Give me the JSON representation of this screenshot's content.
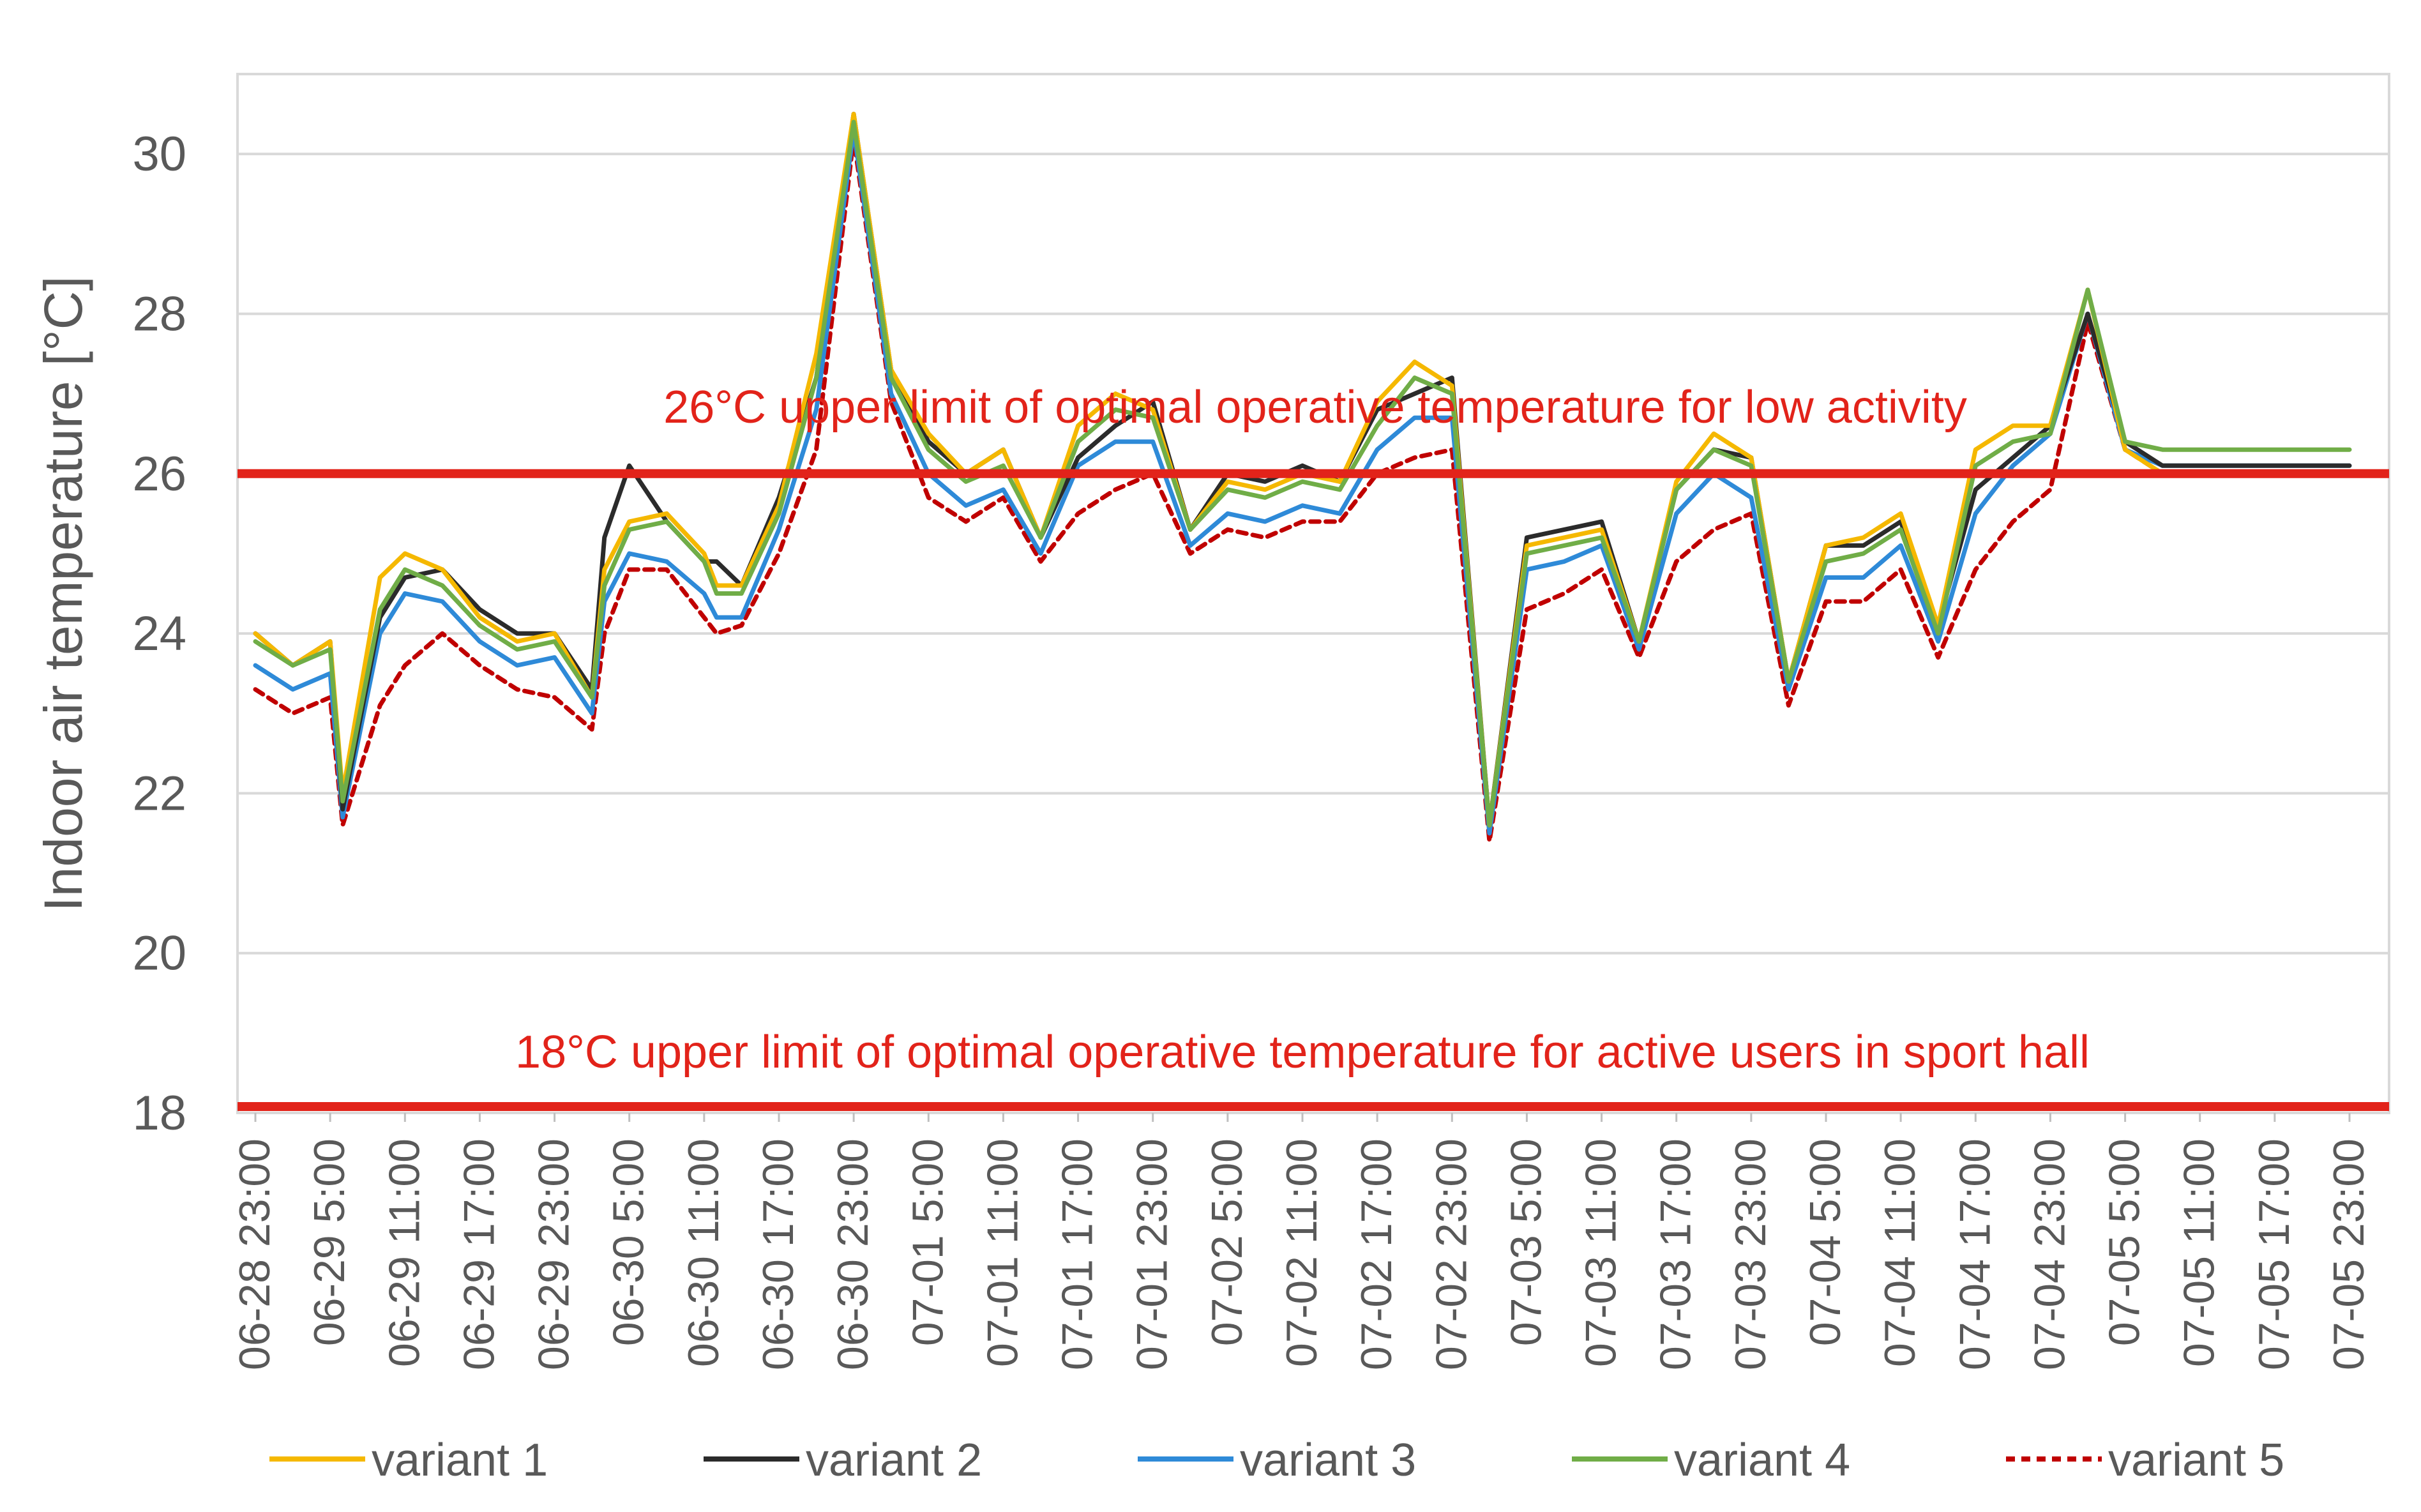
{
  "chart_data": {
    "type": "line",
    "ylabel": "Indoor air temperature [°C]",
    "xlabel": "",
    "ylim": [
      18,
      31
    ],
    "yticks": [
      18,
      20,
      22,
      24,
      26,
      28,
      30
    ],
    "grid": true,
    "x_tick_labels": [
      "06-28 23:00",
      "06-29 5:00",
      "06-29 11:00",
      "06-29 17:00",
      "06-29 23:00",
      "06-30 5:00",
      "06-30 11:00",
      "06-30 17:00",
      "06-30 23:00",
      "07-01 5:00",
      "07-01 11:00",
      "07-01 17:00",
      "07-01 23:00",
      "07-02 5:00",
      "07-02 11:00",
      "07-02 17:00",
      "07-02 23:00",
      "07-03 5:00",
      "07-03 11:00",
      "07-03 17:00",
      "07-03 23:00",
      "07-04 5:00",
      "07-04 11:00",
      "07-04 17:00",
      "07-04 23:00",
      "07-05 5:00",
      "07-05 11:00",
      "07-05 17:00",
      "07-05 23:00"
    ],
    "x_hours": [
      0,
      3,
      6,
      7,
      10,
      12,
      15,
      18,
      21,
      24,
      27,
      28,
      30,
      33,
      36,
      37,
      39,
      42,
      45,
      48,
      51,
      54,
      57,
      60,
      63,
      66,
      69,
      72,
      75,
      78,
      81,
      84,
      87,
      90,
      93,
      96,
      99,
      102,
      105,
      108,
      111,
      114,
      117,
      120,
      123,
      126,
      129,
      132,
      135,
      138,
      141,
      144,
      147,
      150,
      153,
      156,
      159,
      162,
      165,
      168
    ],
    "reference_lines": [
      {
        "value": 26,
        "label": "26°C upper limit of optimal operative temperature for low activity",
        "color": "#e2231a"
      },
      {
        "value": 18,
        "label": "18°C upper limit of optimal operative temperature for active users in sport hall",
        "color": "#e2231a"
      }
    ],
    "series": [
      {
        "name": "variant 1",
        "color": "#f5b800",
        "dash": "",
        "values": [
          24.0,
          23.6,
          23.9,
          22.0,
          24.7,
          25.0,
          24.8,
          24.2,
          23.9,
          24.0,
          23.2,
          24.8,
          25.4,
          25.5,
          25.0,
          24.6,
          24.6,
          25.6,
          27.5,
          30.5,
          27.3,
          26.5,
          26.0,
          26.3,
          25.2,
          26.6,
          27.0,
          26.8,
          25.3,
          25.9,
          25.8,
          26.0,
          25.9,
          26.9,
          27.4,
          27.1,
          21.6,
          25.1,
          25.2,
          25.3,
          23.9,
          25.9,
          26.5,
          26.2,
          23.4,
          25.1,
          25.2,
          25.5,
          24.1,
          26.3,
          26.6,
          26.6,
          28.3,
          26.3,
          26.0,
          26.0,
          26.0,
          26.0,
          26.0,
          26.0
        ]
      },
      {
        "name": "variant 2",
        "color": "#2b2b2b",
        "dash": "",
        "values": [
          24.0,
          23.6,
          23.9,
          21.8,
          24.2,
          24.7,
          24.8,
          24.3,
          24.0,
          24.0,
          23.3,
          25.2,
          26.1,
          25.4,
          24.9,
          24.9,
          24.6,
          25.7,
          27.2,
          30.5,
          27.3,
          26.4,
          26.0,
          26.3,
          25.2,
          26.2,
          26.6,
          26.9,
          25.3,
          26.0,
          25.9,
          26.1,
          25.9,
          26.8,
          27.0,
          27.2,
          21.6,
          25.2,
          25.3,
          25.4,
          23.9,
          25.8,
          26.3,
          26.2,
          23.4,
          25.1,
          25.1,
          25.4,
          24.1,
          25.8,
          26.2,
          26.6,
          28.0,
          26.4,
          26.1,
          26.1,
          26.1,
          26.1,
          26.1,
          26.1
        ]
      },
      {
        "name": "variant 3",
        "color": "#2e8ad8",
        "dash": "",
        "values": [
          23.6,
          23.3,
          23.5,
          21.7,
          24.0,
          24.5,
          24.4,
          23.9,
          23.6,
          23.7,
          23.0,
          24.4,
          25.0,
          24.9,
          24.5,
          24.2,
          24.2,
          25.3,
          26.8,
          30.3,
          27.0,
          26.0,
          25.6,
          25.8,
          25.0,
          26.1,
          26.4,
          26.4,
          25.1,
          25.5,
          25.4,
          25.6,
          25.5,
          26.3,
          26.7,
          26.7,
          21.5,
          24.8,
          24.9,
          25.1,
          23.8,
          25.5,
          26.0,
          25.7,
          23.3,
          24.7,
          24.7,
          25.1,
          23.9,
          25.5,
          26.1,
          26.5,
          28.0,
          26.3,
          26.1,
          26.1,
          26.1,
          26.1,
          26.1,
          26.1
        ]
      },
      {
        "name": "variant 4",
        "color": "#70ad47",
        "dash": "",
        "values": [
          23.9,
          23.6,
          23.8,
          21.9,
          24.3,
          24.8,
          24.6,
          24.1,
          23.8,
          23.9,
          23.2,
          24.6,
          25.3,
          25.4,
          24.9,
          24.5,
          24.5,
          25.5,
          27.2,
          30.4,
          27.2,
          26.3,
          25.9,
          26.1,
          25.2,
          26.4,
          26.8,
          26.7,
          25.3,
          25.8,
          25.7,
          25.9,
          25.8,
          26.6,
          27.2,
          27.0,
          21.6,
          25.0,
          25.1,
          25.2,
          23.9,
          25.8,
          26.3,
          26.1,
          23.4,
          24.9,
          25.0,
          25.3,
          24.0,
          26.1,
          26.4,
          26.5,
          28.3,
          26.4,
          26.3,
          26.3,
          26.3,
          26.3,
          26.3,
          26.3
        ]
      },
      {
        "name": "variant 5",
        "color": "#c00000",
        "dash": "14,10",
        "values": [
          23.3,
          23.0,
          23.2,
          21.6,
          23.1,
          23.6,
          24.0,
          23.6,
          23.3,
          23.2,
          22.8,
          24.0,
          24.8,
          24.8,
          24.2,
          24.0,
          24.1,
          25.0,
          26.3,
          30.2,
          26.9,
          25.7,
          25.4,
          25.7,
          24.9,
          25.5,
          25.8,
          26.0,
          25.0,
          25.3,
          25.2,
          25.4,
          25.4,
          26.0,
          26.2,
          26.3,
          21.4,
          24.3,
          24.5,
          24.8,
          23.7,
          24.9,
          25.3,
          25.5,
          23.1,
          24.4,
          24.4,
          24.8,
          23.7,
          24.8,
          25.4,
          25.8,
          27.9,
          26.3,
          26.0,
          26.0,
          26.0,
          26.0,
          26.0,
          26.0
        ]
      }
    ]
  }
}
